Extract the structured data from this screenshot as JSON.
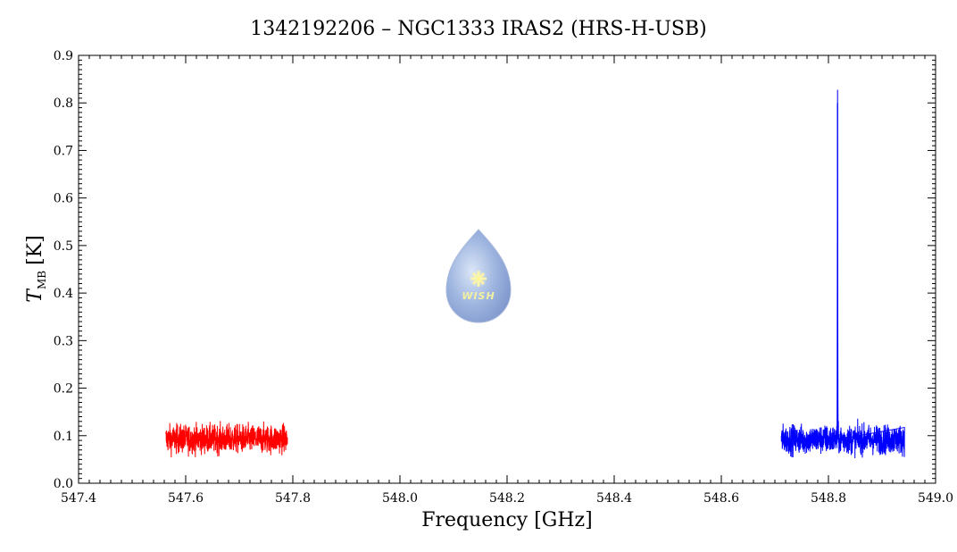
{
  "chart_data": {
    "type": "line",
    "title": "1342192206 – NGC1333 IRAS2 (HRS-H-USB)",
    "xlabel": "Frequency [GHz]",
    "ylabel": {
      "main": "T",
      "subscript": "MB",
      "unit": "[K]"
    },
    "xlim": [
      547.4,
      549.0
    ],
    "ylim": [
      0.0,
      0.9
    ],
    "xticks": [
      "547.4",
      "547.6",
      "547.8",
      "548.0",
      "548.2",
      "548.4",
      "548.6",
      "548.8",
      "549.0"
    ],
    "yticks": [
      "0.0",
      "0.1",
      "0.2",
      "0.3",
      "0.4",
      "0.5",
      "0.6",
      "0.7",
      "0.8",
      "0.9"
    ],
    "grid": false,
    "series": [
      {
        "color": "#ff0000",
        "segment": [
          547.563,
          547.79
        ],
        "baseline": 0.093,
        "noise_range": [
          0.046,
          0.141
        ],
        "peak": null
      },
      {
        "color": "#0000ff",
        "segment": [
          548.712,
          548.942
        ],
        "baseline": 0.092,
        "noise_range": [
          0.045,
          0.142
        ],
        "peak": {
          "x": 548.817,
          "y": 0.8
        }
      }
    ],
    "logo": {
      "text": "WISH",
      "symbol": "star-icon"
    }
  }
}
